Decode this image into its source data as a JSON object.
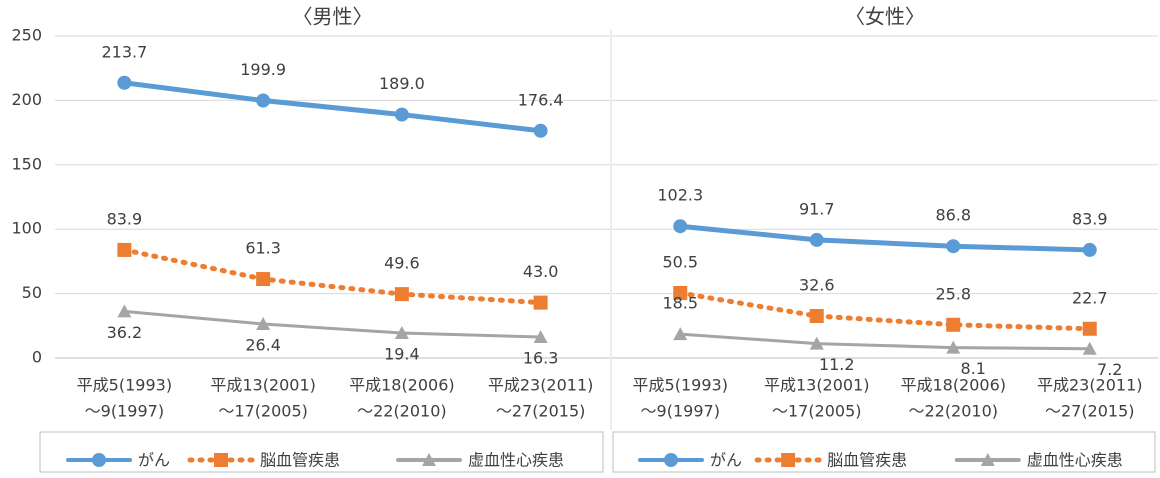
{
  "chart_data": [
    {
      "type": "line",
      "title": "〈男性〉",
      "categories": [
        [
          "平成5(1993)",
          "～9(1997)"
        ],
        [
          "平成13(2001)",
          "～17(2005)"
        ],
        [
          "平成18(2006)",
          "～22(2010)"
        ],
        [
          "平成23(2011)",
          "～27(2015)"
        ]
      ],
      "series": [
        {
          "name": "がん",
          "color": "#5b9bd5",
          "marker": "circle",
          "values": [
            213.7,
            199.9,
            189.0,
            176.4
          ],
          "value_labels": [
            "213.7",
            "199.9",
            "189.0",
            "176.4"
          ]
        },
        {
          "name": "脳血管疾患",
          "color": "#ed7d31",
          "marker": "square",
          "dashed": true,
          "values": [
            83.9,
            61.3,
            49.6,
            43.0
          ],
          "value_labels": [
            "83.9",
            "61.3",
            "49.6",
            "43.0"
          ]
        },
        {
          "name": "虚血性心疾患",
          "color": "#a5a5a5",
          "marker": "triangle",
          "values": [
            36.2,
            26.4,
            19.4,
            16.3
          ]
        }
      ],
      "ylim": [
        0,
        250
      ],
      "yticks": [
        0,
        50,
        100,
        150,
        200,
        250
      ],
      "grid": true,
      "legend": "bottom"
    },
    {
      "type": "line",
      "title": "〈女性〉",
      "categories": [
        [
          "平成5(1993)",
          "～9(1997)"
        ],
        [
          "平成13(2001)",
          "～17(2005)"
        ],
        [
          "平成18(2006)",
          "～22(2010)"
        ],
        [
          "平成23(2011)",
          "～27(2015)"
        ]
      ],
      "series": [
        {
          "name": "がん",
          "color": "#5b9bd5",
          "marker": "circle",
          "values": [
            102.3,
            91.7,
            86.8,
            83.9
          ]
        },
        {
          "name": "脳血管疾患",
          "color": "#ed7d31",
          "marker": "square",
          "dashed": true,
          "values": [
            50.5,
            32.6,
            25.8,
            22.7
          ]
        },
        {
          "name": "虚血性心疾患",
          "color": "#a5a5a5",
          "marker": "triangle",
          "values": [
            18.5,
            11.2,
            8.1,
            7.2
          ]
        }
      ],
      "ylim": [
        0,
        250
      ],
      "yticks": [
        0,
        50,
        100,
        150,
        200,
        250
      ],
      "grid": true,
      "legend": "bottom"
    }
  ]
}
